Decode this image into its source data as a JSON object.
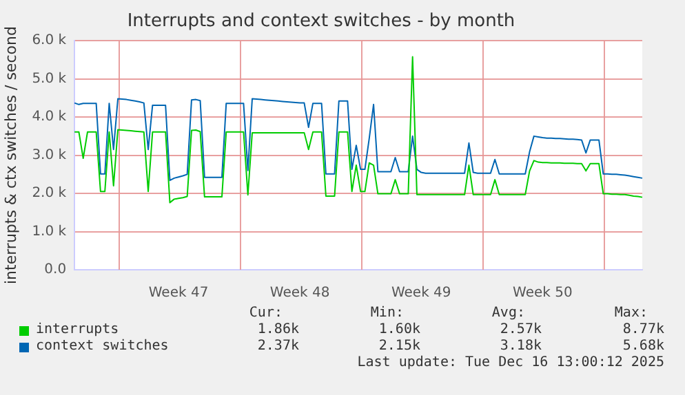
{
  "chart_data": {
    "type": "line",
    "title": "Interrupts and context switches - by month",
    "ylabel": "interrupts & ctx switches / second",
    "categories": [
      null,
      null,
      null,
      null,
      null,
      null,
      null,
      null,
      null,
      null,
      null,
      null,
      null,
      null,
      null,
      null,
      null,
      null,
      null,
      null,
      null,
      null,
      null,
      null,
      "Week 47",
      null,
      null,
      null,
      null,
      null,
      null,
      null,
      null,
      null,
      null,
      null,
      null,
      null,
      null,
      null,
      null,
      null,
      null,
      null,
      null,
      null,
      null,
      null,
      null,
      null,
      null,
      null,
      "Week 48",
      null,
      null,
      null,
      null,
      null,
      null,
      null,
      null,
      null,
      null,
      null,
      null,
      null,
      null,
      null,
      null,
      null,
      null,
      null,
      null,
      null,
      null,
      null,
      null,
      null,
      null,
      null,
      "Week 49",
      null,
      null,
      null,
      null,
      null,
      null,
      null,
      null,
      null,
      null,
      null,
      null,
      null,
      null,
      null,
      null,
      null,
      null,
      null,
      null,
      null,
      null,
      null,
      null,
      null,
      null,
      null,
      "Week 50",
      null,
      null,
      null,
      null,
      null,
      null,
      null,
      null,
      null,
      null,
      null,
      null,
      null,
      null,
      null,
      null,
      null,
      null,
      null,
      null,
      null,
      null,
      null
    ],
    "ylim": [
      0,
      6
    ],
    "yticks": [
      {
        "value": 0,
        "label": "0.0"
      },
      {
        "value": 1,
        "label": "1.0 k"
      },
      {
        "value": 2,
        "label": "2.0 k"
      },
      {
        "value": 3,
        "label": "3.0 k"
      },
      {
        "value": 4,
        "label": "4.0 k"
      },
      {
        "value": 5,
        "label": "5.0 k"
      },
      {
        "value": 6,
        "label": "6.0 k"
      }
    ],
    "grid": true,
    "legend": "bottom",
    "series": [
      {
        "name": "interrupts",
        "color": "#00cc00",
        "values": [
          3.61,
          3.61,
          2.92,
          3.61,
          3.61,
          3.61,
          2.05,
          2.05,
          3.61,
          2.2,
          3.67,
          3.66,
          3.65,
          3.64,
          3.63,
          3.62,
          3.61,
          2.05,
          3.61,
          3.61,
          3.61,
          3.61,
          1.76,
          1.85,
          1.87,
          1.89,
          1.92,
          3.65,
          3.66,
          3.62,
          1.91,
          1.91,
          1.91,
          1.91,
          1.91,
          3.61,
          3.61,
          3.61,
          3.61,
          3.61,
          1.96,
          3.59,
          3.59,
          3.59,
          3.59,
          3.59,
          3.59,
          3.59,
          3.59,
          3.59,
          3.59,
          3.59,
          3.59,
          3.59,
          3.15,
          3.61,
          3.61,
          3.61,
          1.93,
          1.93,
          1.93,
          3.61,
          3.61,
          3.61,
          2.05,
          2.74,
          2.05,
          2.05,
          2.8,
          2.74,
          1.99,
          1.99,
          1.99,
          1.99,
          2.36,
          1.99,
          1.99,
          1.99,
          5.58,
          1.97,
          1.97,
          1.97,
          1.97,
          1.97,
          1.97,
          1.97,
          1.97,
          1.97,
          1.97,
          1.97,
          1.97,
          2.74,
          1.97,
          1.97,
          1.97,
          1.97,
          1.97,
          2.36,
          1.97,
          1.97,
          1.97,
          1.97,
          1.97,
          1.97,
          1.97,
          2.59,
          2.86,
          2.82,
          2.81,
          2.81,
          2.8,
          2.8,
          2.8,
          2.79,
          2.79,
          2.79,
          2.78,
          2.78,
          2.59,
          2.78,
          2.78,
          2.78,
          1.99,
          1.99,
          1.98,
          1.98,
          1.97,
          1.97,
          1.95,
          1.93,
          1.92,
          1.9
        ]
      },
      {
        "name": "context switches",
        "color": "#0066b3",
        "values": [
          4.37,
          4.33,
          4.36,
          4.36,
          4.36,
          4.36,
          2.51,
          2.51,
          4.36,
          3.15,
          4.48,
          4.47,
          4.46,
          4.44,
          4.42,
          4.4,
          4.37,
          3.15,
          4.31,
          4.31,
          4.31,
          4.31,
          2.34,
          2.4,
          2.43,
          2.46,
          2.5,
          4.45,
          4.46,
          4.43,
          2.42,
          2.42,
          2.42,
          2.42,
          2.42,
          4.36,
          4.36,
          4.36,
          4.36,
          4.36,
          2.6,
          4.48,
          4.47,
          4.46,
          4.45,
          4.44,
          4.43,
          4.42,
          4.41,
          4.4,
          4.39,
          4.38,
          4.37,
          4.37,
          3.73,
          4.36,
          4.36,
          4.36,
          2.51,
          2.51,
          2.51,
          4.42,
          4.42,
          4.42,
          2.63,
          3.26,
          2.63,
          2.63,
          3.44,
          4.33,
          2.57,
          2.57,
          2.57,
          2.57,
          2.94,
          2.57,
          2.57,
          2.57,
          3.5,
          2.63,
          2.55,
          2.53,
          2.53,
          2.53,
          2.53,
          2.53,
          2.53,
          2.53,
          2.53,
          2.53,
          2.53,
          3.32,
          2.55,
          2.53,
          2.53,
          2.53,
          2.53,
          2.89,
          2.51,
          2.51,
          2.51,
          2.51,
          2.51,
          2.51,
          2.51,
          3.09,
          3.5,
          3.48,
          3.46,
          3.45,
          3.45,
          3.44,
          3.44,
          3.43,
          3.42,
          3.42,
          3.41,
          3.4,
          3.06,
          3.4,
          3.4,
          3.4,
          2.51,
          2.51,
          2.5,
          2.5,
          2.49,
          2.48,
          2.46,
          2.44,
          2.42,
          2.4
        ]
      }
    ],
    "annotations": [
      "Cur:",
      "Min:",
      "Avg:",
      "Max:",
      "1.86k",
      "1.60k",
      "2.57k",
      "8.77k",
      "2.37k",
      "2.15k",
      "3.18k",
      "5.68k",
      "Last update: Tue Dec 16 13:00:12 2025"
    ]
  }
}
